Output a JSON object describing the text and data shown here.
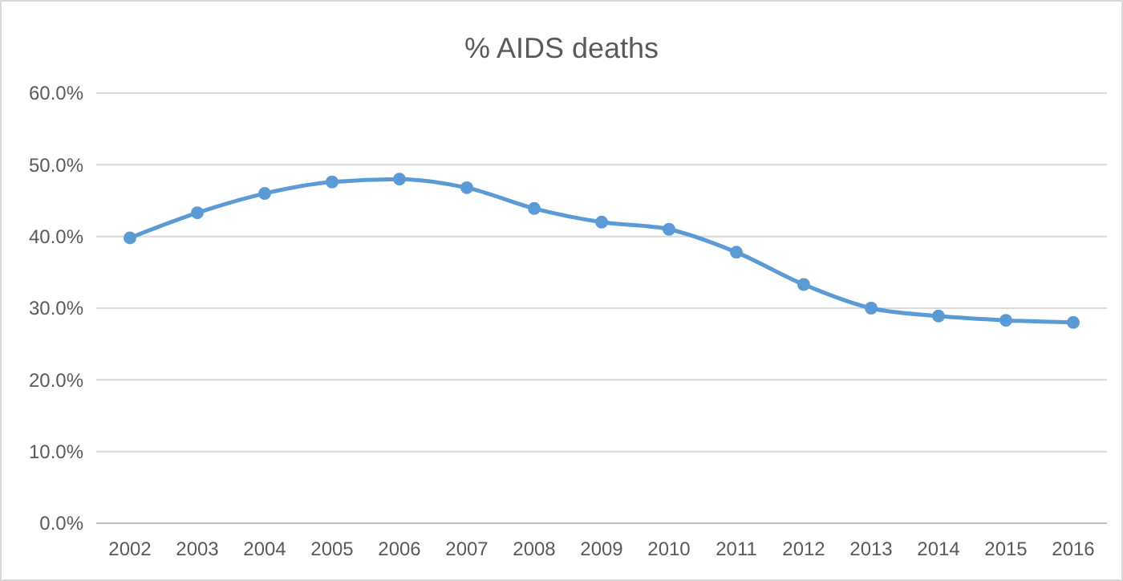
{
  "chart_data": {
    "type": "line",
    "title": "% AIDS deaths",
    "categories": [
      "2002",
      "2003",
      "2004",
      "2005",
      "2006",
      "2007",
      "2008",
      "2009",
      "2010",
      "2011",
      "2012",
      "2013",
      "2014",
      "2015",
      "2016"
    ],
    "series": [
      {
        "color": "#5b9bd5",
        "values": [
          39.8,
          43.3,
          46.0,
          47.6,
          48.0,
          46.8,
          43.9,
          42.0,
          41.0,
          37.8,
          33.3,
          30.0,
          28.9,
          28.3,
          28.0
        ]
      }
    ],
    "ylim": [
      0,
      60
    ],
    "yticks": [
      {
        "value": 0,
        "label": "0.0%"
      },
      {
        "value": 10,
        "label": "10.0%"
      },
      {
        "value": 20,
        "label": "20.0%"
      },
      {
        "value": 30,
        "label": "30.0%"
      },
      {
        "value": 40,
        "label": "40.0%"
      },
      {
        "value": 50,
        "label": "50.0%"
      },
      {
        "value": 60,
        "label": "60.0%"
      }
    ],
    "grid": "y",
    "marker": "circle",
    "line_style": "solid"
  }
}
